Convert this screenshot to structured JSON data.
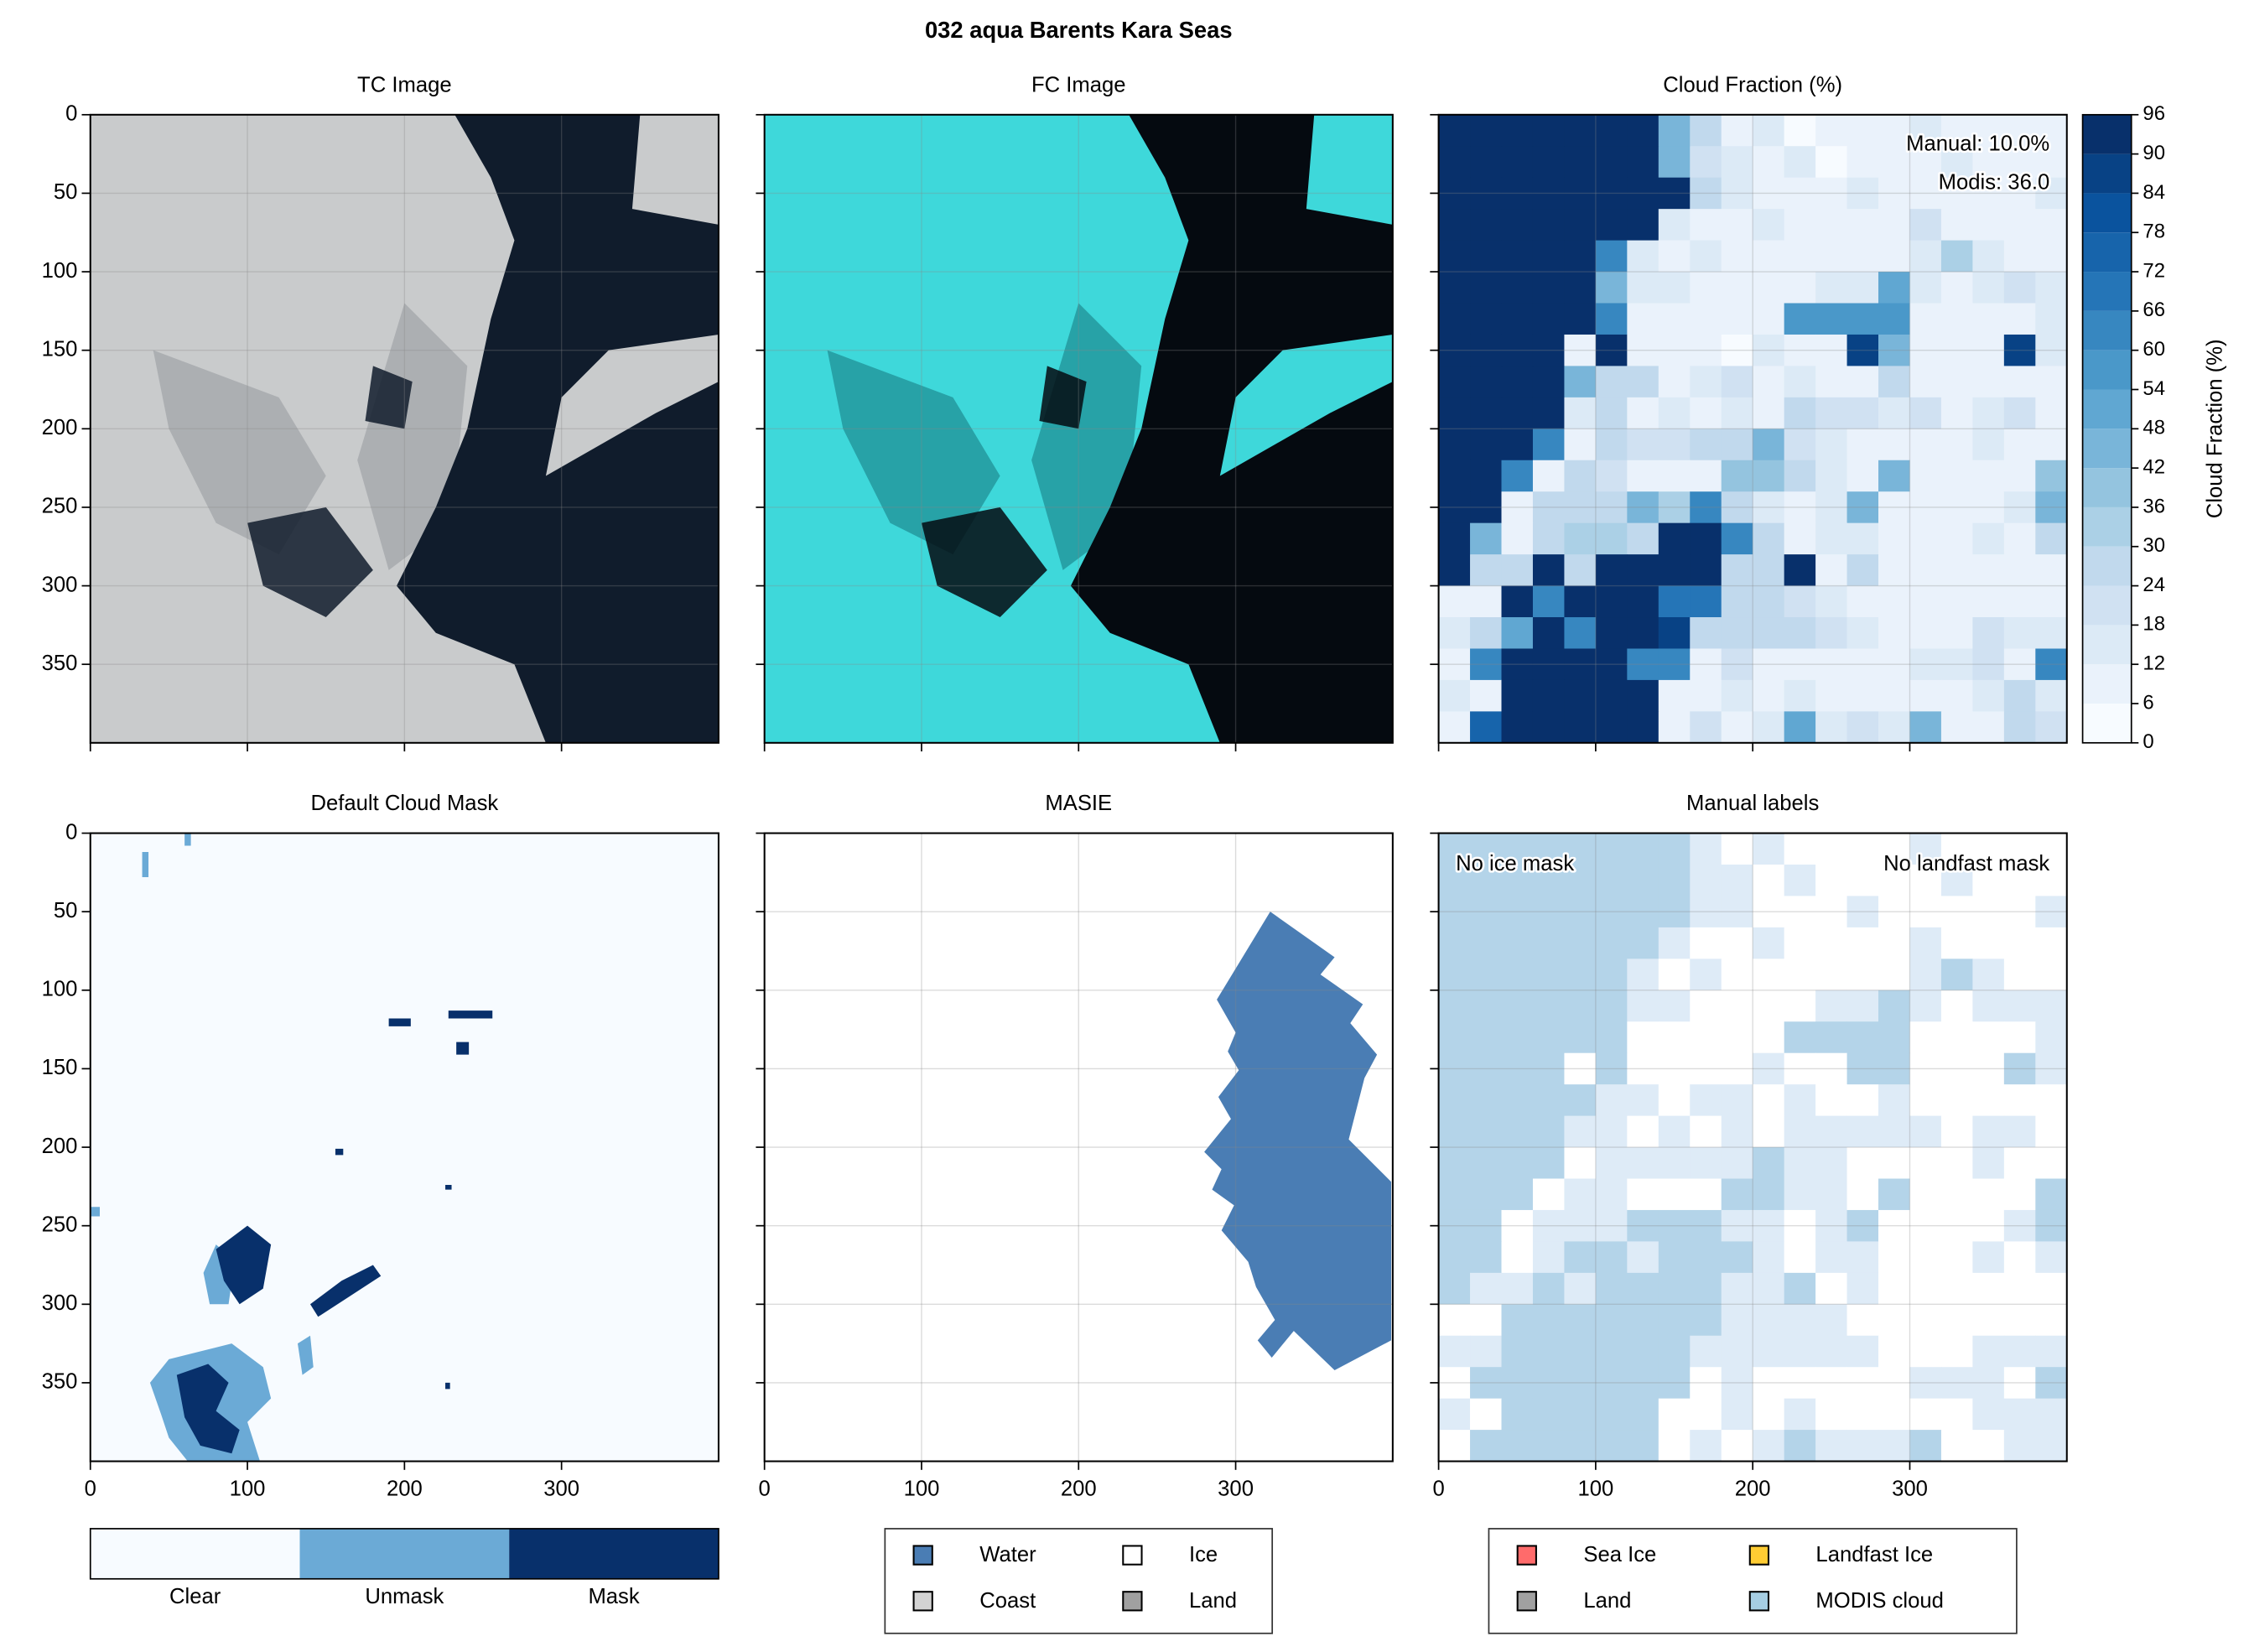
{
  "title": "032 aqua Barents Kara Seas",
  "chart_data": [
    {
      "type": "image",
      "title": "TC Image",
      "palette": [
        "#c9cbcc",
        "#101c2c",
        "#9fa3a6"
      ],
      "xlim": [
        0,
        400
      ],
      "ylim": [
        400,
        0
      ],
      "xticks": [
        0,
        100,
        200,
        300
      ],
      "yticks": [
        0,
        50,
        100,
        150,
        200,
        250,
        300,
        350
      ],
      "show_xticklabels": false,
      "show_yticklabels": true,
      "grid": true
    },
    {
      "type": "image",
      "title": "FC Image",
      "palette": [
        "#3ed8da",
        "#050a10",
        "#1e8c92"
      ],
      "xlim": [
        0,
        400
      ],
      "ylim": [
        400,
        0
      ],
      "xticks": [
        0,
        100,
        200,
        300
      ],
      "yticks": [
        0,
        50,
        100,
        150,
        200,
        250,
        300,
        350
      ],
      "show_xticklabels": false,
      "show_yticklabels": false,
      "grid": true
    },
    {
      "type": "heatmap",
      "title": "Cloud Fraction (%)",
      "xlim": [
        0,
        400
      ],
      "ylim": [
        400,
        0
      ],
      "xticks": [
        0,
        100,
        200,
        300
      ],
      "yticks": [
        0,
        50,
        100,
        150,
        200,
        250,
        300,
        350
      ],
      "show_xticklabels": false,
      "show_yticklabels": false,
      "grid": true,
      "cmap": [
        "#f7fbff",
        "#deebf7",
        "#c6dbef",
        "#9ecae1",
        "#6baed6",
        "#4292c6",
        "#2171b5",
        "#08519c",
        "#08306b"
      ],
      "colorbar": {
        "label": "Cloud Fraction (%)",
        "lim": [
          0,
          96
        ],
        "ticks": [
          0,
          6,
          12,
          18,
          24,
          30,
          36,
          42,
          48,
          54,
          60,
          66,
          72,
          78,
          84,
          90,
          96
        ]
      },
      "annotations": [
        "Manual: 10.0%",
        "Modis: 36.0"
      ],
      "grid_values": [
        [
          96,
          96,
          96,
          96,
          96,
          96,
          96,
          42,
          24,
          6,
          12,
          0,
          6,
          6,
          6,
          12,
          6,
          6,
          6,
          6
        ],
        [
          96,
          96,
          96,
          96,
          96,
          96,
          96,
          42,
          18,
          12,
          6,
          12,
          0,
          6,
          6,
          6,
          12,
          6,
          6,
          6
        ],
        [
          96,
          96,
          96,
          96,
          96,
          96,
          90,
          96,
          24,
          12,
          6,
          6,
          6,
          12,
          6,
          6,
          6,
          6,
          6,
          12
        ],
        [
          96,
          96,
          96,
          96,
          96,
          96,
          90,
          12,
          6,
          6,
          12,
          6,
          6,
          6,
          6,
          18,
          6,
          6,
          6,
          6
        ],
        [
          96,
          96,
          96,
          96,
          96,
          60,
          12,
          6,
          12,
          6,
          6,
          6,
          6,
          6,
          6,
          12,
          30,
          12,
          6,
          6
        ],
        [
          96,
          96,
          96,
          96,
          96,
          42,
          12,
          12,
          6,
          6,
          6,
          6,
          12,
          12,
          48,
          12,
          6,
          12,
          18,
          12
        ],
        [
          96,
          96,
          96,
          96,
          96,
          60,
          6,
          6,
          6,
          6,
          6,
          54,
          54,
          54,
          54,
          6,
          6,
          6,
          6,
          12
        ],
        [
          96,
          96,
          96,
          96,
          6,
          96,
          6,
          6,
          6,
          0,
          12,
          6,
          6,
          84,
          42,
          6,
          6,
          6,
          84,
          12
        ],
        [
          96,
          96,
          96,
          96,
          42,
          24,
          24,
          6,
          12,
          18,
          6,
          12,
          6,
          6,
          24,
          6,
          6,
          6,
          6,
          6
        ],
        [
          96,
          96,
          96,
          96,
          12,
          24,
          6,
          12,
          6,
          12,
          6,
          24,
          18,
          18,
          12,
          18,
          6,
          12,
          18,
          6
        ],
        [
          96,
          96,
          96,
          60,
          6,
          24,
          18,
          18,
          24,
          24,
          42,
          18,
          12,
          6,
          6,
          6,
          6,
          12,
          6,
          6
        ],
        [
          96,
          96,
          60,
          6,
          24,
          18,
          6,
          6,
          6,
          36,
          36,
          24,
          12,
          6,
          42,
          6,
          6,
          6,
          6,
          36
        ],
        [
          96,
          96,
          6,
          24,
          24,
          24,
          42,
          30,
          60,
          24,
          12,
          6,
          12,
          42,
          6,
          6,
          6,
          6,
          12,
          42
        ],
        [
          96,
          42,
          6,
          24,
          30,
          30,
          24,
          96,
          96,
          60,
          24,
          6,
          12,
          12,
          6,
          6,
          6,
          12,
          6,
          24
        ],
        [
          96,
          24,
          24,
          90,
          24,
          96,
          96,
          96,
          96,
          24,
          24,
          96,
          6,
          24,
          6,
          6,
          6,
          6,
          6,
          6
        ],
        [
          6,
          6,
          96,
          60,
          96,
          96,
          96,
          66,
          66,
          24,
          24,
          18,
          12,
          6,
          6,
          6,
          6,
          6,
          6,
          6
        ],
        [
          12,
          24,
          48,
          96,
          60,
          96,
          96,
          84,
          24,
          24,
          24,
          24,
          18,
          12,
          6,
          6,
          6,
          18,
          12,
          12
        ],
        [
          6,
          60,
          96,
          96,
          96,
          96,
          60,
          60,
          6,
          18,
          6,
          6,
          6,
          6,
          6,
          12,
          12,
          18,
          6,
          60
        ],
        [
          12,
          6,
          96,
          96,
          96,
          96,
          96,
          6,
          6,
          12,
          6,
          12,
          6,
          6,
          6,
          6,
          6,
          12,
          24,
          12
        ],
        [
          6,
          72,
          96,
          96,
          96,
          90,
          96,
          6,
          18,
          6,
          12,
          48,
          12,
          18,
          12,
          42,
          6,
          6,
          24,
          18
        ]
      ]
    },
    {
      "type": "mask",
      "title": "Default Cloud Mask",
      "xlim": [
        0,
        400
      ],
      "ylim": [
        400,
        0
      ],
      "xticks": [
        0,
        100,
        200,
        300
      ],
      "yticks": [
        0,
        50,
        100,
        150,
        200,
        250,
        300,
        350
      ],
      "show_xticklabels": true,
      "show_yticklabels": true,
      "grid": false,
      "legend": {
        "labels": [
          "Clear",
          "Unmask",
          "Mask"
        ],
        "colors": [
          "#f7fbff",
          "#6baad6",
          "#08306b"
        ]
      }
    },
    {
      "type": "polygon",
      "title": "MASIE",
      "xlim": [
        0,
        400
      ],
      "ylim": [
        400,
        0
      ],
      "xticks": [
        0,
        100,
        200,
        300
      ],
      "yticks": [
        0,
        50,
        100,
        150,
        200,
        250,
        300,
        350
      ],
      "show_xticklabels": true,
      "show_yticklabels": false,
      "grid": true,
      "color": "#4a7db4",
      "polygon": {
        "x": [
          322,
          363,
          354,
          381,
          373,
          390,
          382,
          372,
          399,
          399,
          363,
          337,
          323,
          314,
          325,
          313,
          308,
          291,
          299,
          285,
          291,
          280,
          297,
          289,
          302,
          295,
          300,
          288
        ],
        "y": [
          50,
          79,
          90,
          109,
          121,
          141,
          156,
          195,
          222,
          323,
          342,
          317,
          334,
          323,
          310,
          289,
          273,
          253,
          237,
          227,
          214,
          203,
          182,
          168,
          151,
          139,
          127,
          106
        ]
      },
      "legend": [
        {
          "name": "Water",
          "color": "#4a7db4"
        },
        {
          "name": "Coast",
          "color": "#d3d3d3"
        },
        {
          "name": "Ice",
          "color": "#ffffff"
        },
        {
          "name": "Land",
          "color": "#a0a0a0"
        }
      ]
    },
    {
      "type": "classes",
      "title": "Manual labels",
      "xlim": [
        0,
        400
      ],
      "ylim": [
        400,
        0
      ],
      "xticks": [
        0,
        100,
        200,
        300
      ],
      "yticks": [
        0,
        50,
        100,
        150,
        200,
        250,
        300,
        350
      ],
      "show_xticklabels": true,
      "show_yticklabels": false,
      "grid": true,
      "class_colors": [
        "#ffffff",
        "#deebf7",
        "#b4d4e9"
      ],
      "annotations": [
        "No ice mask",
        "No landfast mask"
      ],
      "grid_values": [
        [
          2,
          2,
          2,
          2,
          2,
          2,
          2,
          2,
          1,
          0,
          1,
          0,
          0,
          0,
          0,
          1,
          0,
          0,
          0,
          0
        ],
        [
          2,
          2,
          2,
          2,
          2,
          2,
          2,
          2,
          1,
          1,
          0,
          1,
          0,
          0,
          0,
          0,
          1,
          0,
          0,
          0
        ],
        [
          2,
          2,
          2,
          2,
          2,
          2,
          2,
          2,
          1,
          1,
          0,
          0,
          0,
          1,
          0,
          0,
          0,
          0,
          0,
          1
        ],
        [
          2,
          2,
          2,
          2,
          2,
          2,
          2,
          1,
          0,
          0,
          1,
          0,
          0,
          0,
          0,
          1,
          0,
          0,
          0,
          0
        ],
        [
          2,
          2,
          2,
          2,
          2,
          2,
          1,
          0,
          1,
          0,
          0,
          0,
          0,
          0,
          0,
          1,
          2,
          1,
          0,
          0
        ],
        [
          2,
          2,
          2,
          2,
          2,
          2,
          1,
          1,
          0,
          0,
          0,
          0,
          1,
          1,
          2,
          1,
          0,
          1,
          1,
          1
        ],
        [
          2,
          2,
          2,
          2,
          2,
          2,
          0,
          0,
          0,
          0,
          0,
          2,
          2,
          2,
          2,
          0,
          0,
          0,
          0,
          1
        ],
        [
          2,
          2,
          2,
          2,
          0,
          2,
          0,
          0,
          0,
          0,
          1,
          0,
          0,
          2,
          2,
          0,
          0,
          0,
          2,
          1
        ],
        [
          2,
          2,
          2,
          2,
          2,
          1,
          1,
          0,
          1,
          1,
          0,
          1,
          0,
          0,
          1,
          0,
          0,
          0,
          0,
          0
        ],
        [
          2,
          2,
          2,
          2,
          1,
          1,
          0,
          1,
          0,
          1,
          0,
          1,
          1,
          1,
          1,
          1,
          0,
          1,
          1,
          0
        ],
        [
          2,
          2,
          2,
          2,
          0,
          1,
          1,
          1,
          1,
          1,
          2,
          1,
          1,
          0,
          0,
          0,
          0,
          1,
          0,
          0
        ],
        [
          2,
          2,
          2,
          0,
          1,
          1,
          0,
          0,
          0,
          2,
          2,
          1,
          1,
          0,
          2,
          0,
          0,
          0,
          0,
          2
        ],
        [
          2,
          2,
          0,
          1,
          1,
          1,
          2,
          2,
          2,
          1,
          1,
          0,
          1,
          2,
          0,
          0,
          0,
          0,
          1,
          2
        ],
        [
          2,
          2,
          0,
          1,
          2,
          2,
          1,
          2,
          2,
          2,
          1,
          0,
          1,
          1,
          0,
          0,
          0,
          1,
          0,
          1
        ],
        [
          2,
          1,
          1,
          2,
          1,
          2,
          2,
          2,
          2,
          1,
          1,
          2,
          0,
          1,
          0,
          0,
          0,
          0,
          0,
          0
        ],
        [
          0,
          0,
          2,
          2,
          2,
          2,
          2,
          2,
          2,
          1,
          1,
          1,
          1,
          0,
          0,
          0,
          0,
          0,
          0,
          0
        ],
        [
          1,
          1,
          2,
          2,
          2,
          2,
          2,
          2,
          1,
          1,
          1,
          1,
          1,
          1,
          0,
          0,
          0,
          1,
          1,
          1
        ],
        [
          0,
          2,
          2,
          2,
          2,
          2,
          2,
          2,
          0,
          1,
          0,
          0,
          0,
          0,
          0,
          1,
          1,
          1,
          0,
          2
        ],
        [
          1,
          0,
          2,
          2,
          2,
          2,
          2,
          0,
          0,
          1,
          0,
          1,
          0,
          0,
          0,
          0,
          0,
          1,
          1,
          1
        ],
        [
          0,
          2,
          2,
          2,
          2,
          2,
          2,
          0,
          1,
          0,
          1,
          2,
          1,
          1,
          1,
          2,
          0,
          0,
          1,
          1
        ]
      ],
      "legend": [
        {
          "name": "Sea Ice",
          "color": "#ff6b6b"
        },
        {
          "name": "Land",
          "color": "#a0a0a0"
        },
        {
          "name": "Landfast Ice",
          "color": "#ffcc33"
        },
        {
          "name": "MODIS cloud",
          "color": "#a6cee3"
        }
      ]
    }
  ]
}
